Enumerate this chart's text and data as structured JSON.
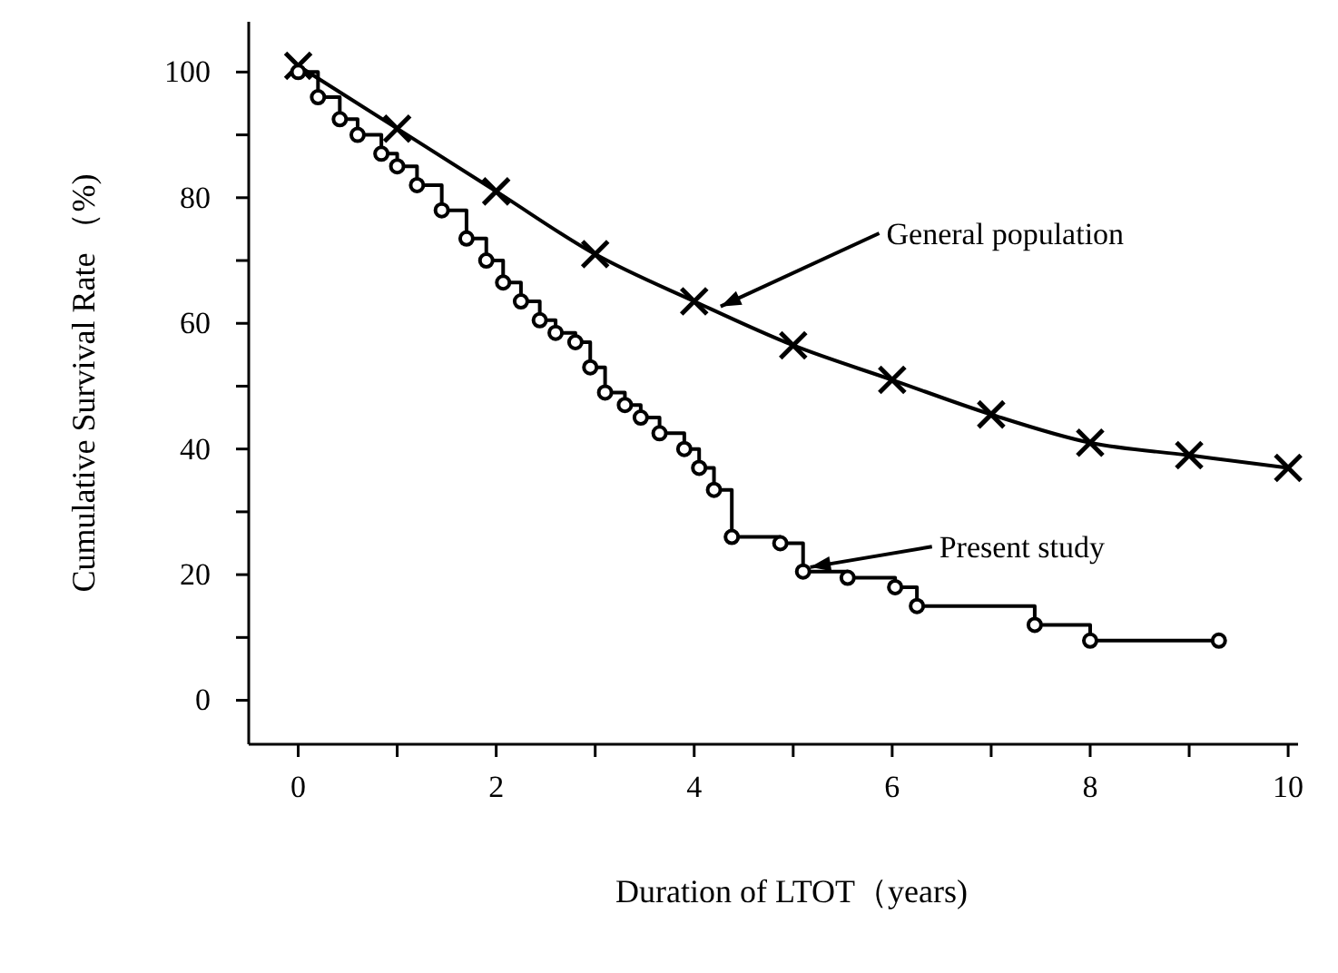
{
  "chart_data": {
    "type": "line",
    "xlabel": "Duration of LTOT（years)",
    "ylabel": "Cumulative Survival Rate （%)",
    "xlim": [
      -0.5,
      10.1
    ],
    "ylim": [
      -7,
      108
    ],
    "xticks": [
      0,
      {
        "value": 1,
        "label": null
      },
      2,
      {
        "value": 3,
        "label": null
      },
      4,
      {
        "value": 5,
        "label": null
      },
      6,
      {
        "value": 7,
        "label": null
      },
      8,
      {
        "value": 9,
        "label": null
      },
      10
    ],
    "yticks": [
      0,
      {
        "value": 10,
        "label": null
      },
      20,
      {
        "value": 30,
        "label": null
      },
      40,
      {
        "value": 50,
        "label": null
      },
      60,
      {
        "value": 70,
        "label": null
      },
      80,
      {
        "value": 90,
        "label": null
      },
      100
    ],
    "grid": false,
    "line_style": "solid",
    "series": [
      {
        "marker": "cross",
        "color": "#000000",
        "x": [
          0,
          1,
          2,
          3,
          4,
          5,
          6,
          7,
          8,
          9,
          10
        ],
        "values": [
          101,
          91,
          81,
          71,
          63.5,
          56.5,
          51,
          45.5,
          41,
          39,
          37
        ]
      },
      {
        "type": "step",
        "marker": "circle",
        "color": "#000000",
        "x": [
          0,
          0.2,
          0.42,
          0.6,
          0.84,
          1.0,
          1.2,
          1.45,
          1.7,
          1.9,
          2.07,
          2.25,
          2.44,
          2.6,
          2.8,
          2.95,
          3.1,
          3.3,
          3.46,
          3.65,
          3.9,
          4.05,
          4.2,
          4.38,
          4.87,
          5.1,
          5.55,
          6.03,
          6.25,
          7.44,
          8.0,
          9.3
        ],
        "values": [
          100,
          96,
          92.5,
          90,
          87,
          85,
          82,
          78,
          73.5,
          70,
          66.5,
          63.5,
          60.5,
          58.5,
          57,
          53,
          49,
          47,
          45,
          42.5,
          40,
          37,
          33.5,
          26,
          25,
          20.5,
          19.5,
          18,
          15,
          12,
          9.5,
          9.5
        ]
      }
    ],
    "annotations": [
      {
        "text": "General population",
        "x": 4.2,
        "y": 62.2
      },
      {
        "text": "Present study",
        "x": 5.1,
        "y": 21
      }
    ]
  }
}
